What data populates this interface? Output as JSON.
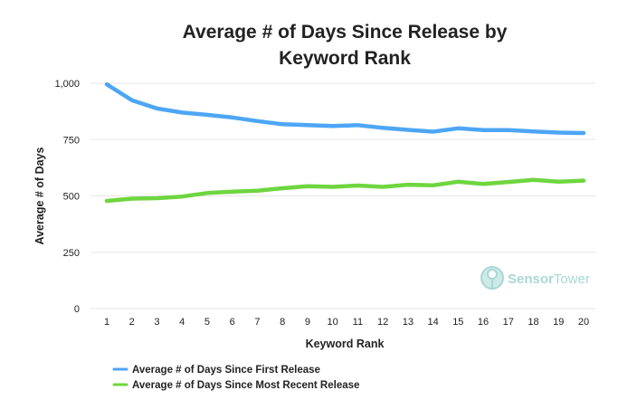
{
  "chart_data": {
    "type": "line",
    "title_lines": [
      "Average # of Days Since Release by",
      "Keyword Rank"
    ],
    "xlabel": "Keyword Rank",
    "ylabel": "Average # of Days",
    "ylim": [
      0,
      1000
    ],
    "y_ticks": [
      0,
      250,
      500,
      750,
      1000
    ],
    "y_tick_labels": [
      "0",
      "250",
      "500",
      "750",
      "1,000"
    ],
    "x": [
      1,
      2,
      3,
      4,
      5,
      6,
      7,
      8,
      9,
      10,
      11,
      12,
      13,
      14,
      15,
      16,
      17,
      18,
      19,
      20
    ],
    "x_tick_labels": [
      "1",
      "2",
      "3",
      "4",
      "5",
      "6",
      "7",
      "8",
      "9",
      "10",
      "11",
      "12",
      "13",
      "14",
      "15",
      "16",
      "17",
      "18",
      "19",
      "20"
    ],
    "grid": true,
    "legend_position": "bottom-left",
    "series": [
      {
        "name": "Average # of Days Since First Release",
        "color": "#4da6f5",
        "values": [
          995,
          925,
          888,
          870,
          860,
          848,
          832,
          818,
          814,
          810,
          814,
          802,
          793,
          785,
          800,
          792,
          792,
          786,
          781,
          779
        ]
      },
      {
        "name": "Average # of Days Since Most Recent Release",
        "color": "#6ed63f",
        "values": [
          478,
          488,
          490,
          497,
          513,
          519,
          523,
          534,
          543,
          540,
          546,
          540,
          550,
          547,
          563,
          553,
          562,
          571,
          563,
          568
        ]
      }
    ],
    "watermark": {
      "text_part1": "Sensor",
      "text_part2": "Tower",
      "icon": "sensortower-logo-icon"
    }
  }
}
